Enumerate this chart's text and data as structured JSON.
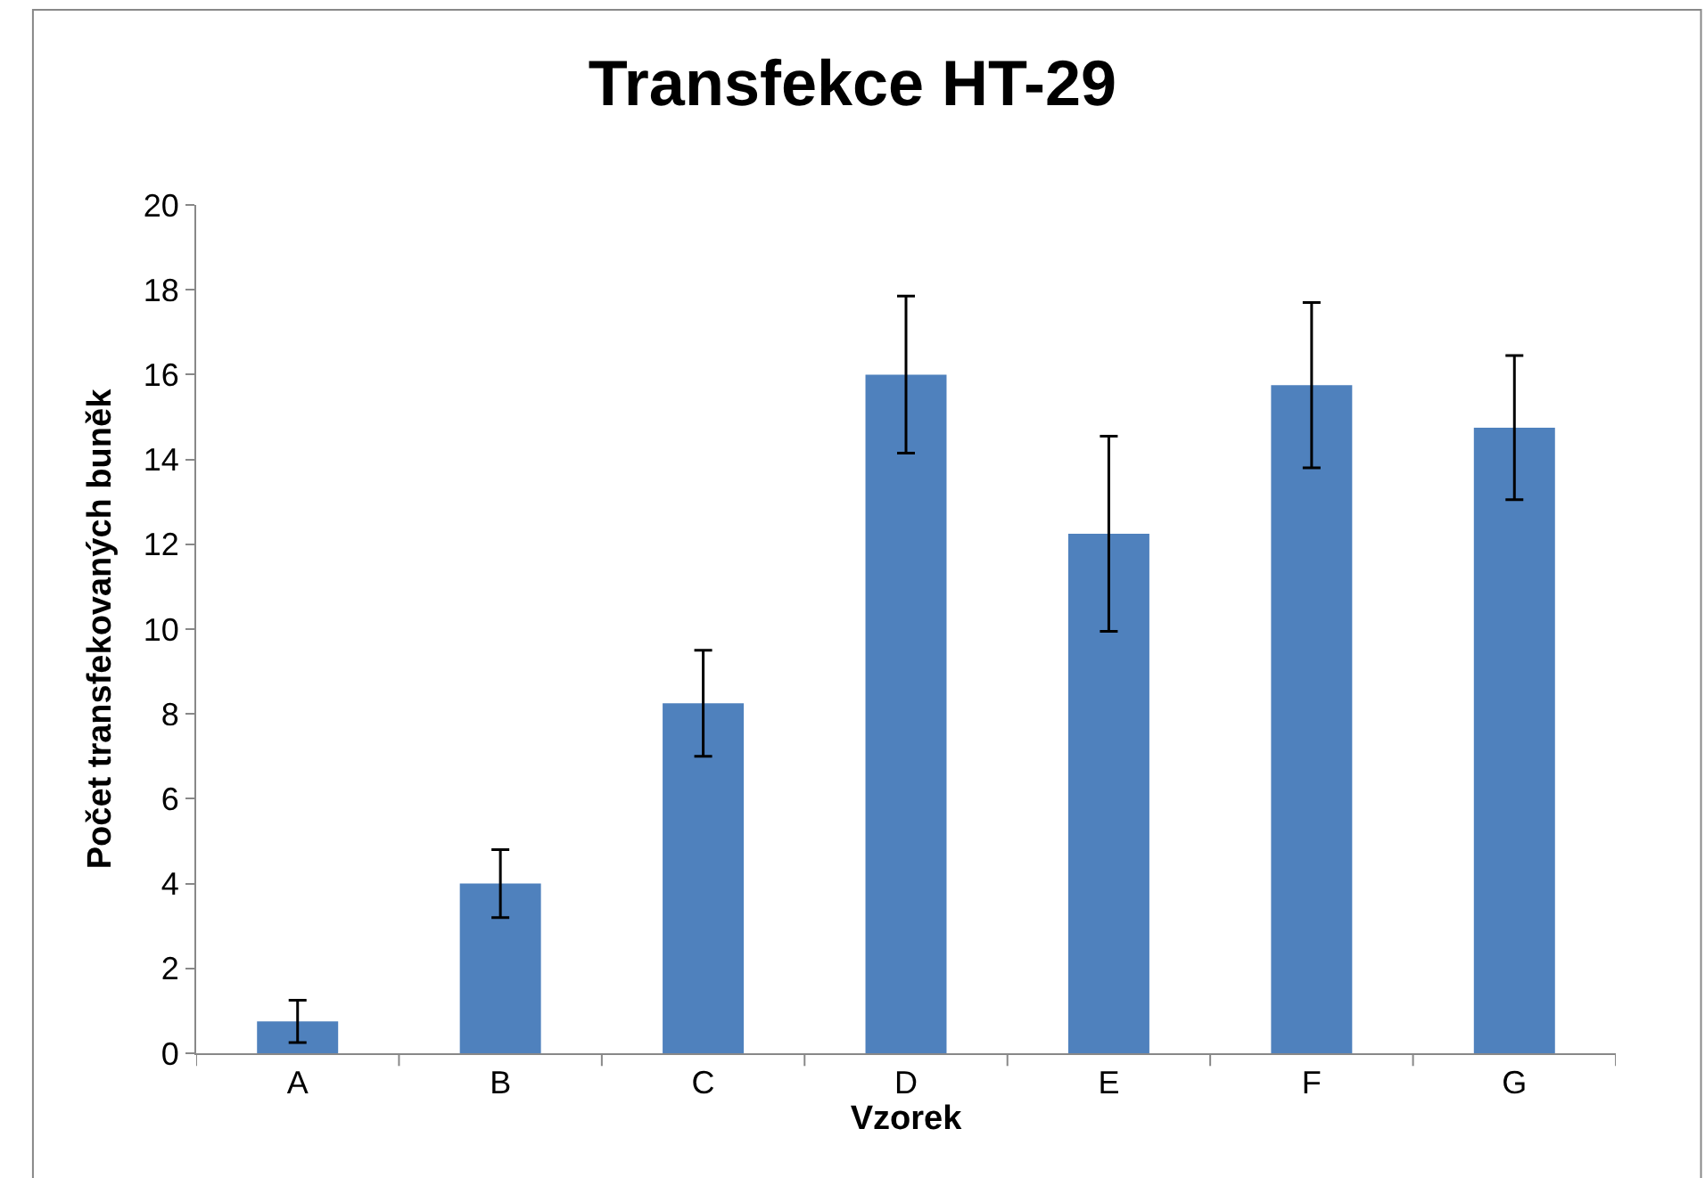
{
  "chart_data": {
    "type": "bar",
    "title": "Transfekce HT-29",
    "xlabel": "Vzorek",
    "ylabel": "Počet transfekovaných buněk",
    "categories": [
      "A",
      "B",
      "C",
      "D",
      "E",
      "F",
      "G"
    ],
    "values": [
      0.75,
      4.0,
      8.25,
      16.0,
      12.25,
      15.75,
      14.75
    ],
    "errors": [
      0.5,
      0.8,
      1.25,
      1.85,
      2.3,
      1.95,
      1.7
    ],
    "color": "#4f81bd",
    "ylim": [
      0,
      20
    ],
    "yticks": [
      0,
      2,
      4,
      6,
      8,
      10,
      12,
      14,
      16,
      18,
      20
    ]
  }
}
